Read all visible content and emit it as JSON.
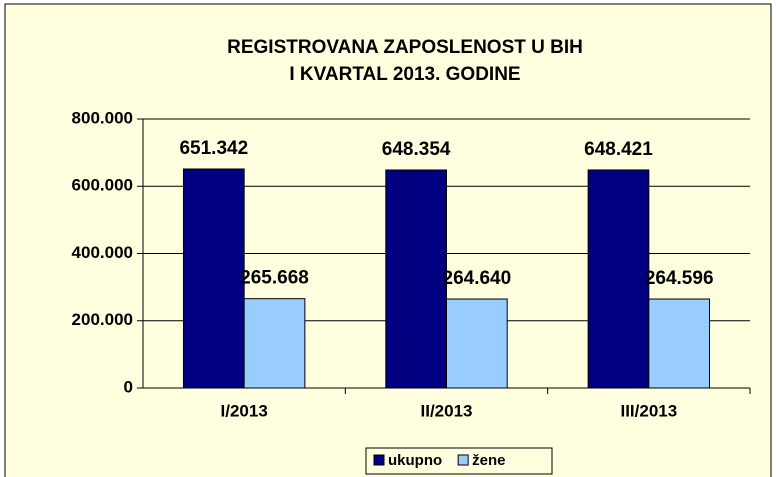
{
  "chart_data": {
    "type": "bar",
    "title": "REGISTROVANA  ZAPOSLENOST  U BIH",
    "subtitle": "I KVARTAL  2013.  GODINE",
    "categories": [
      "I/2013",
      "II/2013",
      "III/2013"
    ],
    "series": [
      {
        "name": "ukupno",
        "color": "#000080",
        "values": [
          651342,
          648354,
          648421
        ],
        "value_labels": [
          "651.342",
          "648.354",
          "648.421"
        ]
      },
      {
        "name": "žene",
        "color": "#99ccff",
        "values": [
          265668,
          264640,
          264596
        ],
        "value_labels": [
          "265.668",
          "264.640",
          "264.596"
        ]
      }
    ],
    "ylim": [
      0,
      800000
    ],
    "yticks": [
      0,
      {
        "value": 200000,
        "label": "200.000"
      },
      {
        "value": 400000,
        "label": "400.000"
      },
      {
        "value": 600000,
        "label": "600.000"
      },
      {
        "value": 800000,
        "label": "800.000"
      }
    ],
    "grid": true,
    "legend": "bottom"
  }
}
